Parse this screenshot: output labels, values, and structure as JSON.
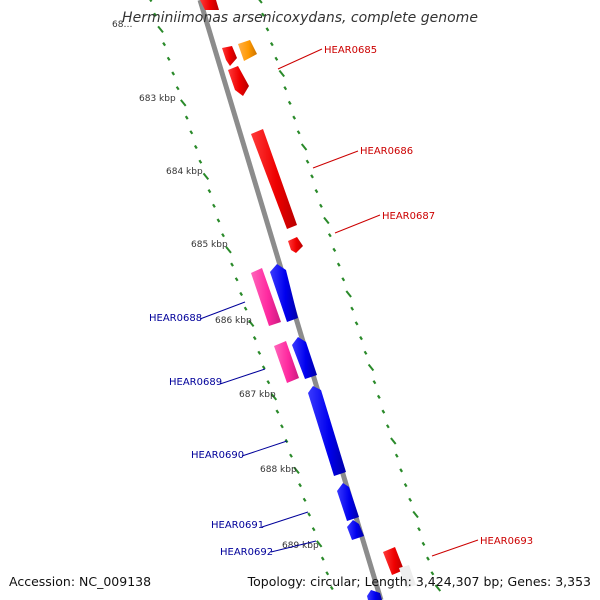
{
  "title": "Herminiimonas arsenicoxydans, complete genome",
  "footer": {
    "accession": "Accession: NC_009138",
    "topology": "Topology: circular; Length: 3,424,307 bp; Genes: 3,353"
  },
  "colors": {
    "backbone": "#8c8c8c",
    "tick": "#2a8a2a",
    "forward_label": "#cc0000",
    "reverse_label": "#00009a"
  },
  "ticks": [
    {
      "label": "68…"
    },
    {
      "label": "683 kbp"
    },
    {
      "label": "684 kbp"
    },
    {
      "label": "685 kbp"
    },
    {
      "label": "686 kbp"
    },
    {
      "label": "687 kbp"
    },
    {
      "label": "688 kbp"
    },
    {
      "label": "689 kbp"
    }
  ],
  "gene_labels": [
    {
      "name": "HEAR0685",
      "strand": "forward"
    },
    {
      "name": "HEAR0686",
      "strand": "forward"
    },
    {
      "name": "HEAR0687",
      "strand": "forward"
    },
    {
      "name": "HEAR0688",
      "strand": "reverse"
    },
    {
      "name": "HEAR0689",
      "strand": "reverse"
    },
    {
      "name": "HEAR0690",
      "strand": "reverse"
    },
    {
      "name": "HEAR0691",
      "strand": "reverse"
    },
    {
      "name": "HEAR0692",
      "strand": "reverse"
    },
    {
      "name": "HEAR0693",
      "strand": "forward"
    }
  ]
}
